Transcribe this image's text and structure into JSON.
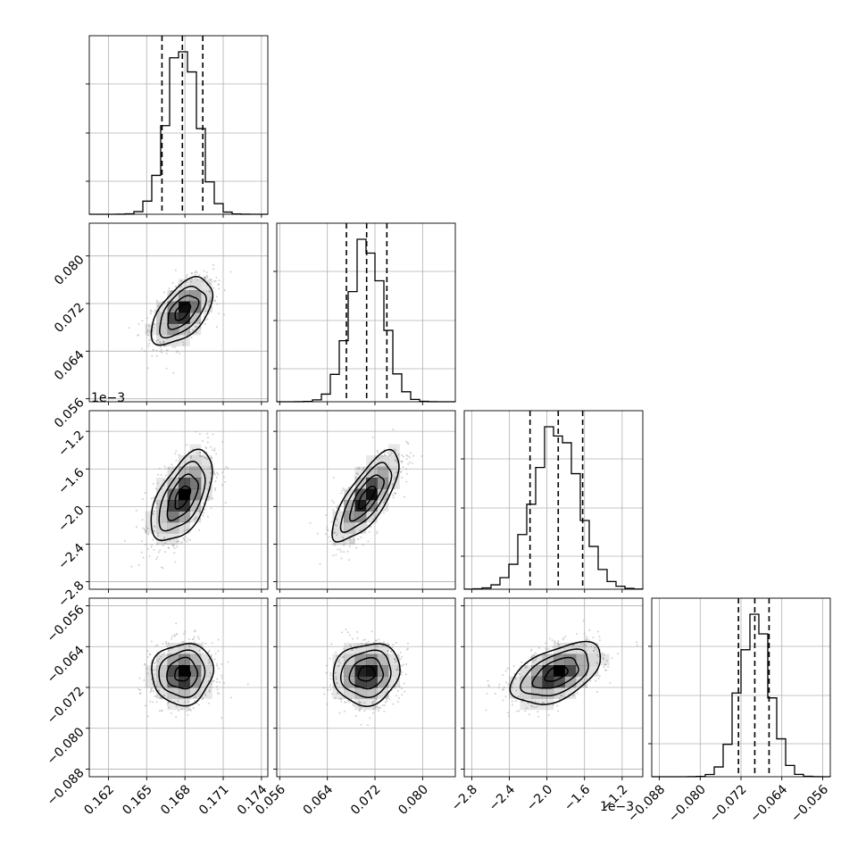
{
  "chart_data": {
    "type": "corner",
    "grid": true,
    "colors": {
      "line": "#000000",
      "grid": "#b0b0b0",
      "density": "#000000",
      "points": "#9a9a9a"
    },
    "params": [
      {
        "range": [
          0.1605,
          0.1745
        ],
        "mean": 0.1678,
        "sigma": 0.0012,
        "quantiles": [
          0.1662,
          0.1678,
          0.1694
        ],
        "ticks": [
          0.162,
          0.165,
          0.168,
          0.171,
          0.174
        ],
        "tick_labels": [
          "0.162",
          "0.165",
          "0.168",
          "0.171",
          "0.174"
        ],
        "offset": ""
      },
      {
        "range": [
          0.0555,
          0.0855
        ],
        "mean": 0.0706,
        "sigma": 0.0028,
        "quantiles": [
          0.0672,
          0.0706,
          0.074
        ],
        "ticks": [
          0.056,
          0.064,
          0.072,
          0.08
        ],
        "tick_labels": [
          "0.056",
          "0.064",
          "0.072",
          "0.080"
        ],
        "offset": ""
      },
      {
        "range": [
          -2.88,
          -0.98
        ],
        "mean": -1.9,
        "sigma": 0.24,
        "quantiles": [
          -2.18,
          -1.88,
          -1.62
        ],
        "ticks": [
          -2.8,
          -2.4,
          -2.0,
          -1.6,
          -1.2
        ],
        "tick_labels": [
          "−2.8",
          "−2.4",
          "−2.0",
          "−1.6",
          "−1.2"
        ],
        "offset": "1e−3"
      },
      {
        "range": [
          -0.0895,
          -0.0545
        ],
        "mean": -0.0693,
        "sigma": 0.003,
        "quantiles": [
          -0.0725,
          -0.0693,
          -0.0665
        ],
        "ticks": [
          -0.088,
          -0.08,
          -0.072,
          -0.064,
          -0.056
        ],
        "tick_labels": [
          "−0.088",
          "−0.080",
          "−0.072",
          "−0.064",
          "−0.056"
        ],
        "offset": ""
      }
    ],
    "correlations": [
      {
        "pair": [
          1,
          0
        ],
        "rho": 0.55
      },
      {
        "pair": [
          2,
          0
        ],
        "rho": 0.55
      },
      {
        "pair": [
          2,
          1
        ],
        "rho": 0.75
      },
      {
        "pair": [
          3,
          0
        ],
        "rho": 0.05
      },
      {
        "pair": [
          3,
          1
        ],
        "rho": 0.1
      },
      {
        "pair": [
          3,
          2
        ],
        "rho": 0.5
      }
    ],
    "contour_levels_sigma": [
      0.5,
      1.0,
      1.5,
      2.0
    ]
  }
}
